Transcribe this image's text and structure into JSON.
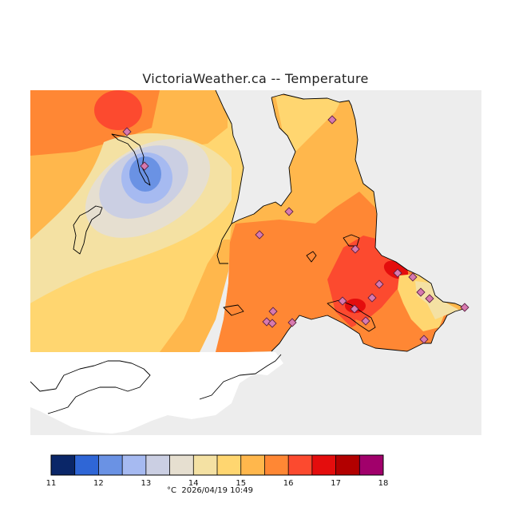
{
  "title": "VictoriaWeather.ca -- Temperature",
  "unit": "°C",
  "timestamp": "2026/04/19 10:49",
  "colors": {
    "water": "#ededed",
    "land_blank": "#ffffff",
    "coast": "#000000",
    "station_fill": "#d77ab0"
  },
  "legend": {
    "ticks": [
      "11",
      "12",
      "13",
      "14",
      "15",
      "16",
      "17",
      "18"
    ],
    "bins": [
      "#0a2668",
      "#2f66d6",
      "#6a92e4",
      "#a6baf1",
      "#cbcfe3",
      "#e6dfd0",
      "#f4e1a3",
      "#ffd670",
      "#ffb74c",
      "#ff8734",
      "#fc4a2f",
      "#e40d0d",
      "#b20000",
      "#a1006b"
    ]
  }
}
